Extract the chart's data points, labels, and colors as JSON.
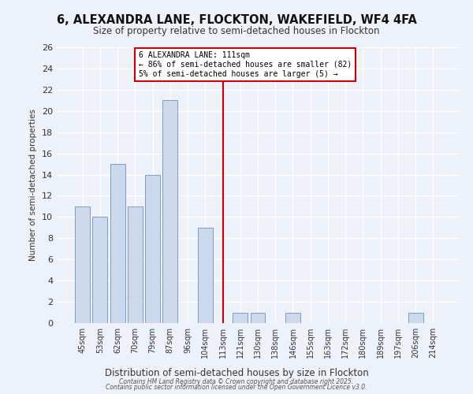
{
  "title": "6, ALEXANDRA LANE, FLOCKTON, WAKEFIELD, WF4 4FA",
  "subtitle": "Size of property relative to semi-detached houses in Flockton",
  "xlabel": "Distribution of semi-detached houses by size in Flockton",
  "ylabel": "Number of semi-detached properties",
  "bar_labels": [
    "45sqm",
    "53sqm",
    "62sqm",
    "70sqm",
    "79sqm",
    "87sqm",
    "96sqm",
    "104sqm",
    "113sqm",
    "121sqm",
    "130sqm",
    "138sqm",
    "146sqm",
    "155sqm",
    "163sqm",
    "172sqm",
    "180sqm",
    "189sqm",
    "197sqm",
    "206sqm",
    "214sqm"
  ],
  "bar_values": [
    11,
    10,
    15,
    11,
    14,
    21,
    0,
    9,
    0,
    1,
    1,
    0,
    1,
    0,
    0,
    0,
    0,
    0,
    0,
    1,
    0
  ],
  "bar_color": "#ccd9ed",
  "bar_edge_color": "#7a9ec8",
  "highlight_index": 8,
  "highlight_color": "#cc0000",
  "annotation_title": "6 ALEXANDRA LANE: 111sqm",
  "annotation_line1": "← 86% of semi-detached houses are smaller (82)",
  "annotation_line2": "5% of semi-detached houses are larger (5) →",
  "ylim": [
    0,
    26
  ],
  "yticks": [
    0,
    2,
    4,
    6,
    8,
    10,
    12,
    14,
    16,
    18,
    20,
    22,
    24,
    26
  ],
  "footer1": "Contains HM Land Registry data © Crown copyright and database right 2025.",
  "footer2": "Contains public sector information licensed under the Open Government Licence v3.0.",
  "bg_color": "#edf1f9",
  "grid_color": "#ffffff",
  "bar_width": 0.85
}
